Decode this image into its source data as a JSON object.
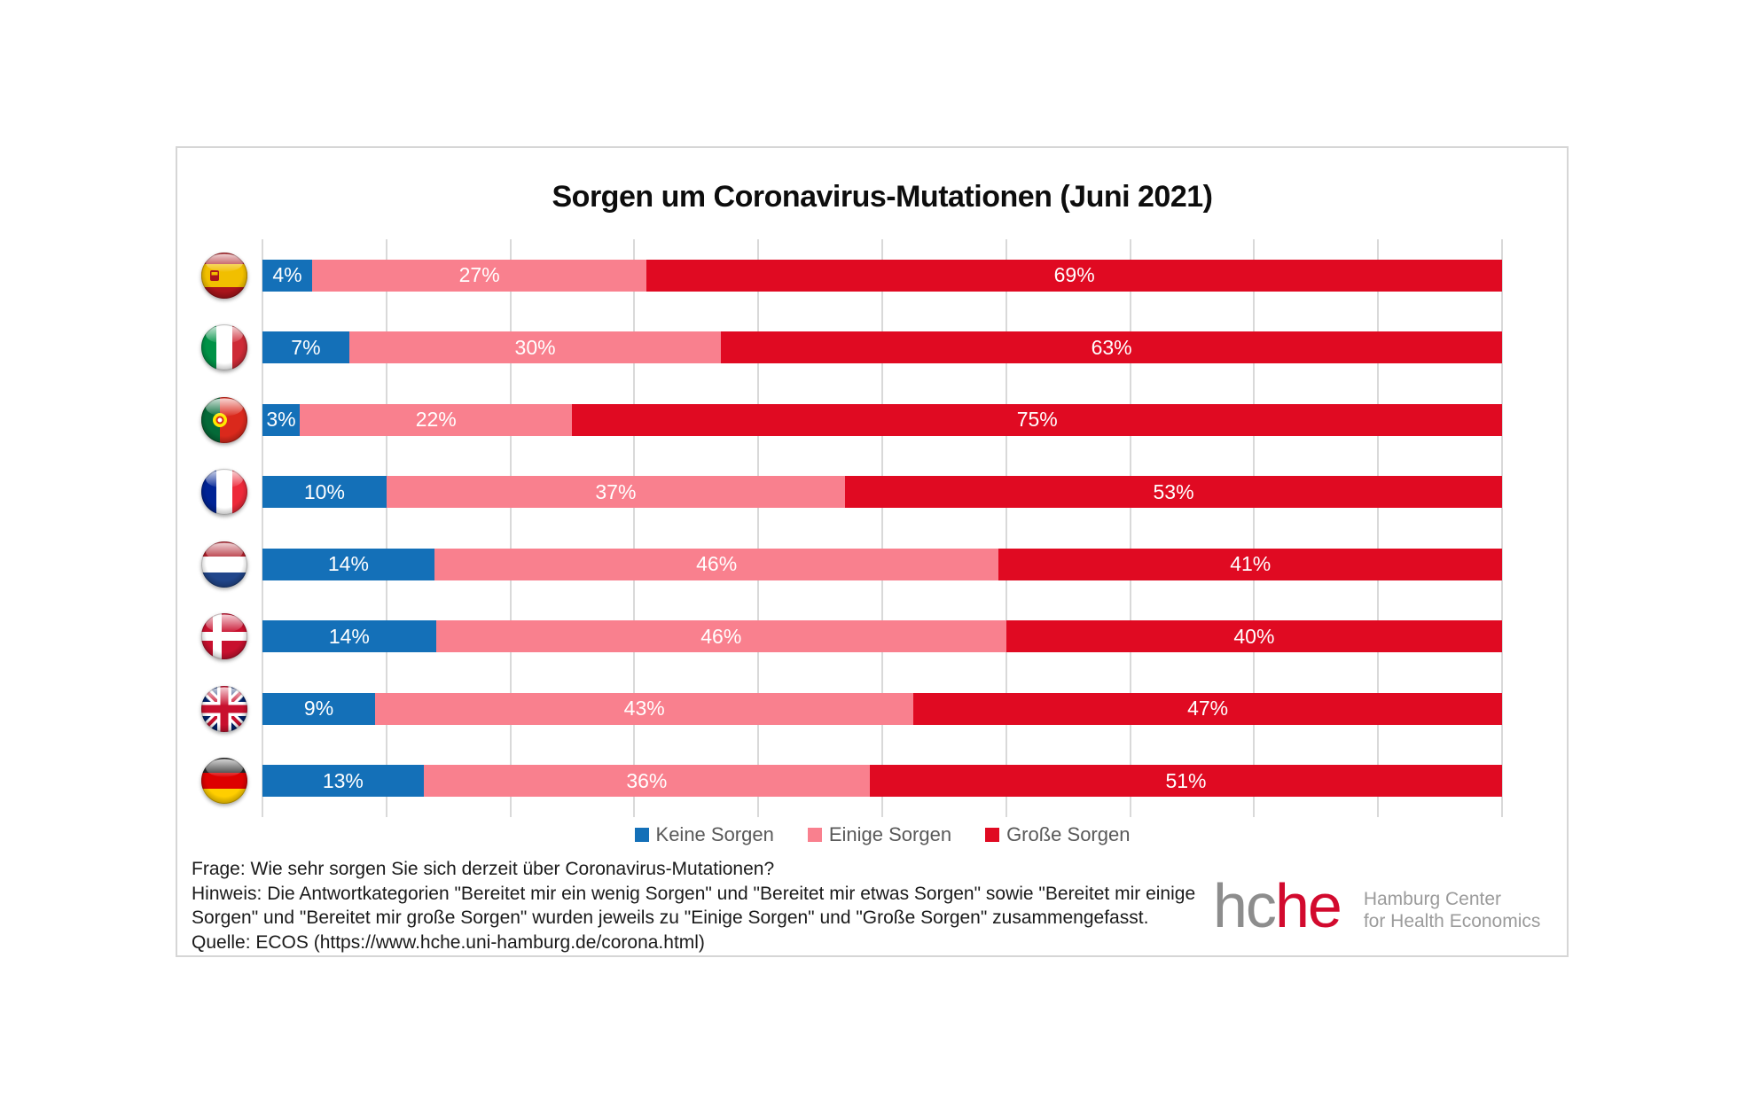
{
  "title": "Sorgen um Coronavirus-Mutationen (Juni 2021)",
  "chart_data": {
    "type": "bar",
    "stacked": true,
    "orientation": "horizontal",
    "unit": "%",
    "xlim": [
      0,
      100
    ],
    "gridline_step": 10,
    "grid": true,
    "legend_position": "bottom",
    "categories": [
      {
        "icon": "flag-spain-icon",
        "code": "es"
      },
      {
        "icon": "flag-italy-icon",
        "code": "it"
      },
      {
        "icon": "flag-portugal-icon",
        "code": "pt"
      },
      {
        "icon": "flag-france-icon",
        "code": "fr"
      },
      {
        "icon": "flag-netherlands-icon",
        "code": "nl"
      },
      {
        "icon": "flag-denmark-icon",
        "code": "dk"
      },
      {
        "icon": "flag-uk-icon",
        "code": "gb"
      },
      {
        "icon": "flag-germany-icon",
        "code": "de"
      }
    ],
    "series": [
      {
        "name": "Keine Sorgen",
        "color": "#1470B8",
        "values": [
          4,
          7,
          3,
          10,
          14,
          14,
          9,
          13
        ]
      },
      {
        "name": "Einige Sorgen",
        "color": "#F9808E",
        "values": [
          27,
          30,
          22,
          37,
          46,
          46,
          43,
          36
        ]
      },
      {
        "name": "Große Sorgen",
        "color": "#E00A22",
        "values": [
          69,
          63,
          75,
          53,
          41,
          40,
          47,
          51
        ]
      }
    ]
  },
  "footer": {
    "frage": "Frage: Wie sehr sorgen Sie sich derzeit über  Coronavirus-Mutationen?",
    "hinweis": "Hinweis: Die Antwortkategorien \"Bereitet mir ein wenig Sorgen\" und \"Bereitet mir etwas Sorgen\" sowie \"Bereitet mir einige Sorgen\" und \"Bereitet mir große Sorgen\" wurden jeweils zu \"Einige Sorgen\" und \"Große Sorgen\" zusammengefasst.",
    "quelle": "Quelle: ECOS (https://www.hche.uni-hamburg.de/corona.html)"
  },
  "logo": {
    "gray_text": "hc",
    "red_text": "he",
    "subtitle_line1": "Hamburg Center",
    "subtitle_line2": "for Health Economics",
    "gray_color": "#8d8d8d",
    "red_color": "#d20a2e",
    "subtitle_color": "#9b9b9b"
  },
  "colors": {
    "gridline": "#d9d9d9",
    "chart_border": "#d6d6d6",
    "legend_text": "#595959",
    "bar_label_text": "#ffffff",
    "title_text": "#0d0d0d"
  }
}
